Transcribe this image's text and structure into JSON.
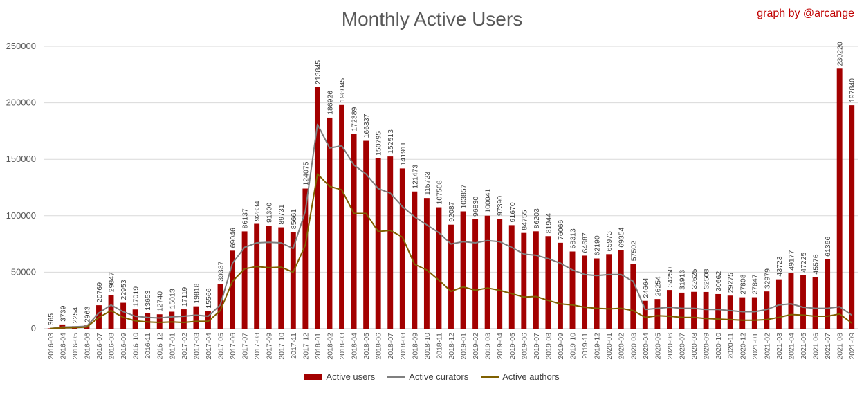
{
  "credit": "graph by @arcange",
  "colors": {
    "active_users": "#a30000",
    "active_curators": "#7f7f7f",
    "active_authors": "#7f6000",
    "grid": "#d9d9d9",
    "text": "#595959"
  },
  "chart_data": {
    "type": "bar",
    "title": "Monthly Active Users",
    "xlabel": "",
    "ylabel": "",
    "ylim": [
      0,
      250000
    ],
    "yticks": [
      "0",
      "50000",
      "100000",
      "150000",
      "200000",
      "250000"
    ],
    "grid": true,
    "legend_position": "bottom",
    "categories": [
      "2016-03",
      "2016-04",
      "2016-05",
      "2016-06",
      "2016-07",
      "2016-08",
      "2016-09",
      "2016-10",
      "2016-11",
      "2016-12",
      "2017-01",
      "2017-02",
      "2017-03",
      "2017-04",
      "2017-05",
      "2017-06",
      "2017-07",
      "2017-08",
      "2017-09",
      "2017-10",
      "2017-11",
      "2017-12",
      "2018-01",
      "2018-02",
      "2018-03",
      "2018-04",
      "2018-05",
      "2018-06",
      "2018-07",
      "2018-08",
      "2018-09",
      "2018-10",
      "2018-11",
      "2018-12",
      "2019-01",
      "2019-02",
      "2019-03",
      "2019-04",
      "2019-05",
      "2019-06",
      "2019-07",
      "2019-08",
      "2019-09",
      "2019-10",
      "2019-11",
      "2019-12",
      "2020-01",
      "2020-02",
      "2020-03",
      "2020-04",
      "2020-05",
      "2020-06",
      "2020-07",
      "2020-08",
      "2020-09",
      "2020-10",
      "2020-11",
      "2020-12",
      "2021-01",
      "2021-02",
      "2021-03",
      "2021-04",
      "2021-05",
      "2021-06",
      "2021-07",
      "2021-08",
      "2021-09"
    ],
    "series": [
      {
        "name": "Active users",
        "kind": "bar",
        "values": [
          365,
          3739,
          2254,
          2963,
          20769,
          29847,
          22953,
          17019,
          13653,
          12740,
          15013,
          17119,
          19818,
          15566,
          39337,
          69046,
          86137,
          92834,
          91300,
          89731,
          85661,
          124075,
          213845,
          186926,
          198045,
          172389,
          166337,
          150795,
          152513,
          141911,
          121473,
          115723,
          107508,
          92087,
          103857,
          96830,
          100041,
          97390,
          91670,
          84755,
          86203,
          81944,
          76066,
          68313,
          64687,
          62190,
          65973,
          69354,
          57502,
          24664,
          26254,
          34250,
          31913,
          32625,
          32508,
          30662,
          29275,
          27808,
          27847,
          32979,
          43723,
          49177,
          47225,
          45576,
          61366,
          230220,
          197840
        ]
      },
      {
        "name": "Active curators",
        "kind": "line",
        "values": [
          200,
          1500,
          1700,
          2200,
          14000,
          21000,
          15000,
          11000,
          10000,
          9500,
          10500,
          11000,
          12000,
          11000,
          21000,
          58000,
          72000,
          76000,
          76500,
          76000,
          71000,
          104000,
          181000,
          160000,
          162000,
          145000,
          137000,
          124000,
          120000,
          108000,
          99000,
          92000,
          85000,
          75000,
          77000,
          76000,
          78000,
          77000,
          72000,
          66000,
          65000,
          62000,
          58000,
          52000,
          48000,
          47000,
          48000,
          48000,
          42000,
          17000,
          18000,
          19000,
          18000,
          18000,
          17000,
          17000,
          16000,
          15000,
          15000,
          17000,
          21000,
          22000,
          19000,
          18000,
          18000,
          19500,
          12000
        ]
      },
      {
        "name": "Active authors",
        "kind": "line",
        "values": [
          100,
          800,
          1000,
          1500,
          10000,
          16000,
          10000,
          7000,
          6000,
          5500,
          6000,
          5500,
          6500,
          6500,
          16000,
          42000,
          53000,
          55000,
          54000,
          54500,
          50000,
          74000,
          137000,
          126000,
          123000,
          102000,
          102000,
          86000,
          87000,
          81000,
          57000,
          52000,
          43000,
          33000,
          37000,
          34000,
          36000,
          34000,
          31000,
          28000,
          28500,
          25000,
          22000,
          21000,
          19000,
          18000,
          17500,
          18000,
          16000,
          10000,
          11500,
          11000,
          10000,
          10000,
          9000,
          8500,
          8000,
          7500,
          7500,
          8000,
          10000,
          12500,
          12000,
          11000,
          11000,
          13000,
          5000
        ]
      }
    ]
  }
}
